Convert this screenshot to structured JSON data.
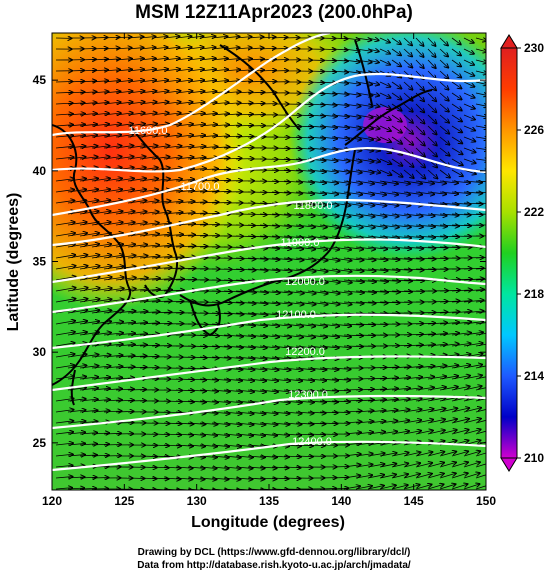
{
  "title": "MSM 12Z11Apr2023 (200.0hPa)",
  "xaxis": {
    "label": "Longitude (degrees)",
    "ticks": [
      "120",
      "125",
      "130",
      "135",
      "140",
      "145",
      "150"
    ],
    "range": [
      120,
      150
    ]
  },
  "yaxis": {
    "label": "Latitude  (degrees)",
    "ticks": [
      "25",
      "30",
      "35",
      "40",
      "45"
    ],
    "range": [
      22.4,
      47.6
    ]
  },
  "colorbar": {
    "ticks": [
      "210",
      "214",
      "218",
      "222",
      "226",
      "230"
    ],
    "range": [
      210,
      230
    ],
    "colors": [
      "#d000d0",
      "#0000c8",
      "#1e5aff",
      "#00c8ff",
      "#00e6a0",
      "#20d020",
      "#a8e000",
      "#ffe600",
      "#ff9600",
      "#ff3c00",
      "#e02020"
    ]
  },
  "contours": {
    "labels": [
      "11600.0",
      "11700.0",
      "11800.0",
      "11900.0",
      "12000.0",
      "12100.0",
      "12200.0",
      "12300.0",
      "12400.0"
    ],
    "color": "#ffffff"
  },
  "footer": {
    "line1": "Drawing by DCL (https://www.gfd-dennou.org/library/dcl/)",
    "line2": "Data from http://database.rish.kyoto-u.ac.jp/arch/jmadata/"
  }
}
